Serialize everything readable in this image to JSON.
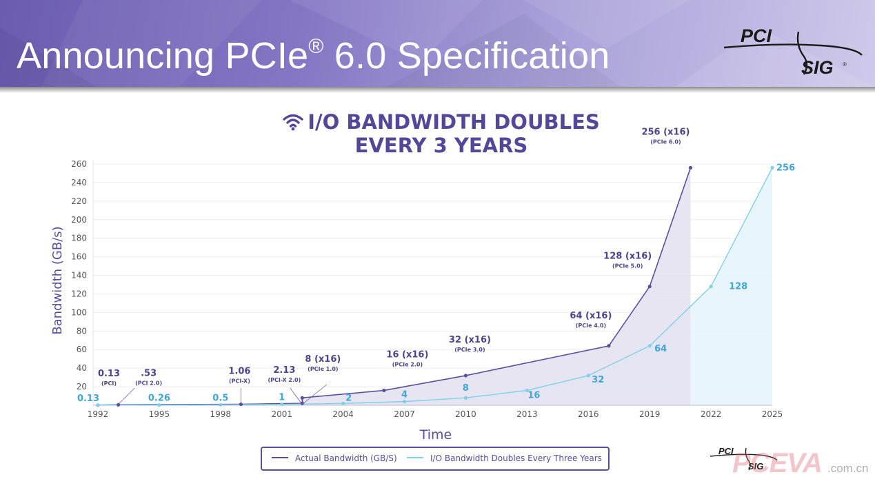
{
  "slide": {
    "title_main": "Announcing PCIe",
    "title_reg": "®",
    "title_rest": " 6.0 Specification",
    "logo_text_top": "PCI",
    "logo_text_bottom": "SIG",
    "logo_reg": "®"
  },
  "chart_data": {
    "type": "line",
    "title_line1": "I/O BANDWIDTH DOUBLES",
    "title_line2": "EVERY 3 YEARS",
    "title_icon": "wifi-icon",
    "xlabel": "Time",
    "ylabel": "Bandwidth (GB/s)",
    "x_ticks": [
      "1992",
      "1995",
      "1998",
      "2001",
      "2004",
      "2007",
      "2010",
      "2013",
      "2016",
      "2019",
      "2022",
      "2025"
    ],
    "xlim": [
      1992,
      2025
    ],
    "ylim": [
      0,
      260
    ],
    "y_ticks": [
      20,
      40,
      60,
      80,
      100,
      120,
      140,
      160,
      180,
      200,
      220,
      240,
      260
    ],
    "grid": "horizontal",
    "legend_position": "bottom",
    "series": [
      {
        "name": "Actual Bandwidth (GB/S)",
        "color": "#5c4d9e",
        "fill": "#e4e0f0",
        "points": [
          {
            "x": 1992,
            "y": 0.13,
            "label": "0.13",
            "sublabel": "(PCI)"
          },
          {
            "x": 1993,
            "y": 0.53,
            "label": ".53",
            "sublabel": "(PCI 2.0)"
          },
          {
            "x": 1999,
            "y": 1.06,
            "label": "1.06",
            "sublabel": "(PCI-X)"
          },
          {
            "x": 2002,
            "y": 2.13,
            "label": "2.13",
            "sublabel": "(PCI-X 2.0)"
          },
          {
            "x": 2002,
            "y": 8,
            "label": "8 (x16)",
            "sublabel": "(PCIe 1.0)"
          },
          {
            "x": 2006,
            "y": 16,
            "label": "16 (x16)",
            "sublabel": "(PCIe 2.0)"
          },
          {
            "x": 2010,
            "y": 32,
            "label": "32 (x16)",
            "sublabel": "(PCIe 3.0)"
          },
          {
            "x": 2017,
            "y": 64,
            "label": "64 (x16)",
            "sublabel": "(PCIe 4.0)"
          },
          {
            "x": 2019,
            "y": 128,
            "label": "128 (x16)",
            "sublabel": "(PCIe 5.0)"
          },
          {
            "x": 2021,
            "y": 256,
            "label": "256 (x16)",
            "sublabel": "(PCIe 6.0)"
          }
        ]
      },
      {
        "name": "I/O Bandwidth Doubles Every Three Years",
        "color": "#7fd0e8",
        "fill": "#e5f5fb",
        "label_color": "#3fa6d6",
        "points": [
          {
            "x": 1992,
            "y": 0.13,
            "label": "0.13"
          },
          {
            "x": 1995,
            "y": 0.26,
            "label": "0.26"
          },
          {
            "x": 1998,
            "y": 0.5,
            "label": "0.5"
          },
          {
            "x": 2001,
            "y": 1,
            "label": "1"
          },
          {
            "x": 2004,
            "y": 2,
            "label": "2"
          },
          {
            "x": 2007,
            "y": 4,
            "label": "4"
          },
          {
            "x": 2010,
            "y": 8,
            "label": "8"
          },
          {
            "x": 2013,
            "y": 16,
            "label": "16"
          },
          {
            "x": 2016,
            "y": 32,
            "label": "32"
          },
          {
            "x": 2019,
            "y": 64,
            "label": "64"
          },
          {
            "x": 2022,
            "y": 128,
            "label": "128"
          },
          {
            "x": 2025,
            "y": 256,
            "label": "256"
          }
        ]
      }
    ]
  },
  "watermark": {
    "text": "PCEVA",
    "suffix": ".com.cn"
  }
}
